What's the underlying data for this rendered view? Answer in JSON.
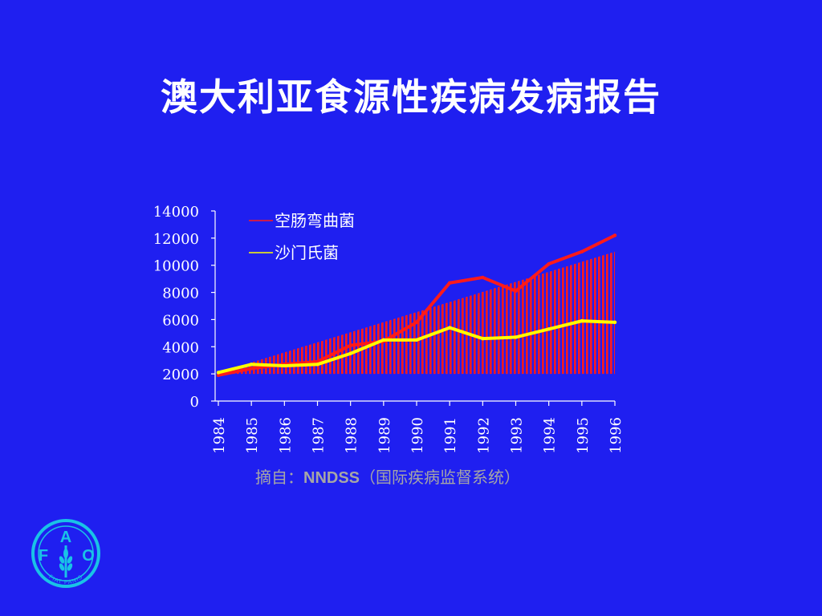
{
  "slide": {
    "title": "澳大利亚食源性疾病发病报告"
  },
  "source": {
    "prefix": "摘自：",
    "name": "NNDSS",
    "suffix": "（国际疾病监督系统）"
  },
  "logo": {
    "letters": [
      "F",
      "A",
      "O"
    ],
    "motto": "FIAT PANIS"
  },
  "colors": {
    "background": "#1f1ff0",
    "campylobacter": "#ff1a1a",
    "salmonella": "#ffff00",
    "band": "#ff1a1a",
    "axis": "#ffffff",
    "source_text": "#a6a6a6"
  },
  "chart_data": {
    "type": "line",
    "title": "",
    "xlabel": "",
    "ylabel": "",
    "categories": [
      "1984",
      "1985",
      "1986",
      "1987",
      "1988",
      "1989",
      "1990",
      "1991",
      "1992",
      "1993",
      "1994",
      "1995",
      "1996"
    ],
    "ylim": [
      0,
      14000
    ],
    "yticks": [
      "0",
      "2000",
      "4000",
      "6000",
      "8000",
      "10000",
      "12000",
      "14000"
    ],
    "grid": false,
    "legend_position": "top-left",
    "series": [
      {
        "name": "空肠弯曲菌",
        "color": "#ff1a1a",
        "values": [
          1900,
          2400,
          2700,
          2900,
          4100,
          4400,
          5800,
          8700,
          9100,
          8100,
          10100,
          11000,
          12200
        ]
      },
      {
        "name": "沙门氏菌",
        "color": "#ffff00",
        "values": [
          2100,
          2700,
          2600,
          2700,
          3500,
          4500,
          4500,
          5400,
          4600,
          4700,
          5300,
          5900,
          5800
        ]
      }
    ]
  }
}
